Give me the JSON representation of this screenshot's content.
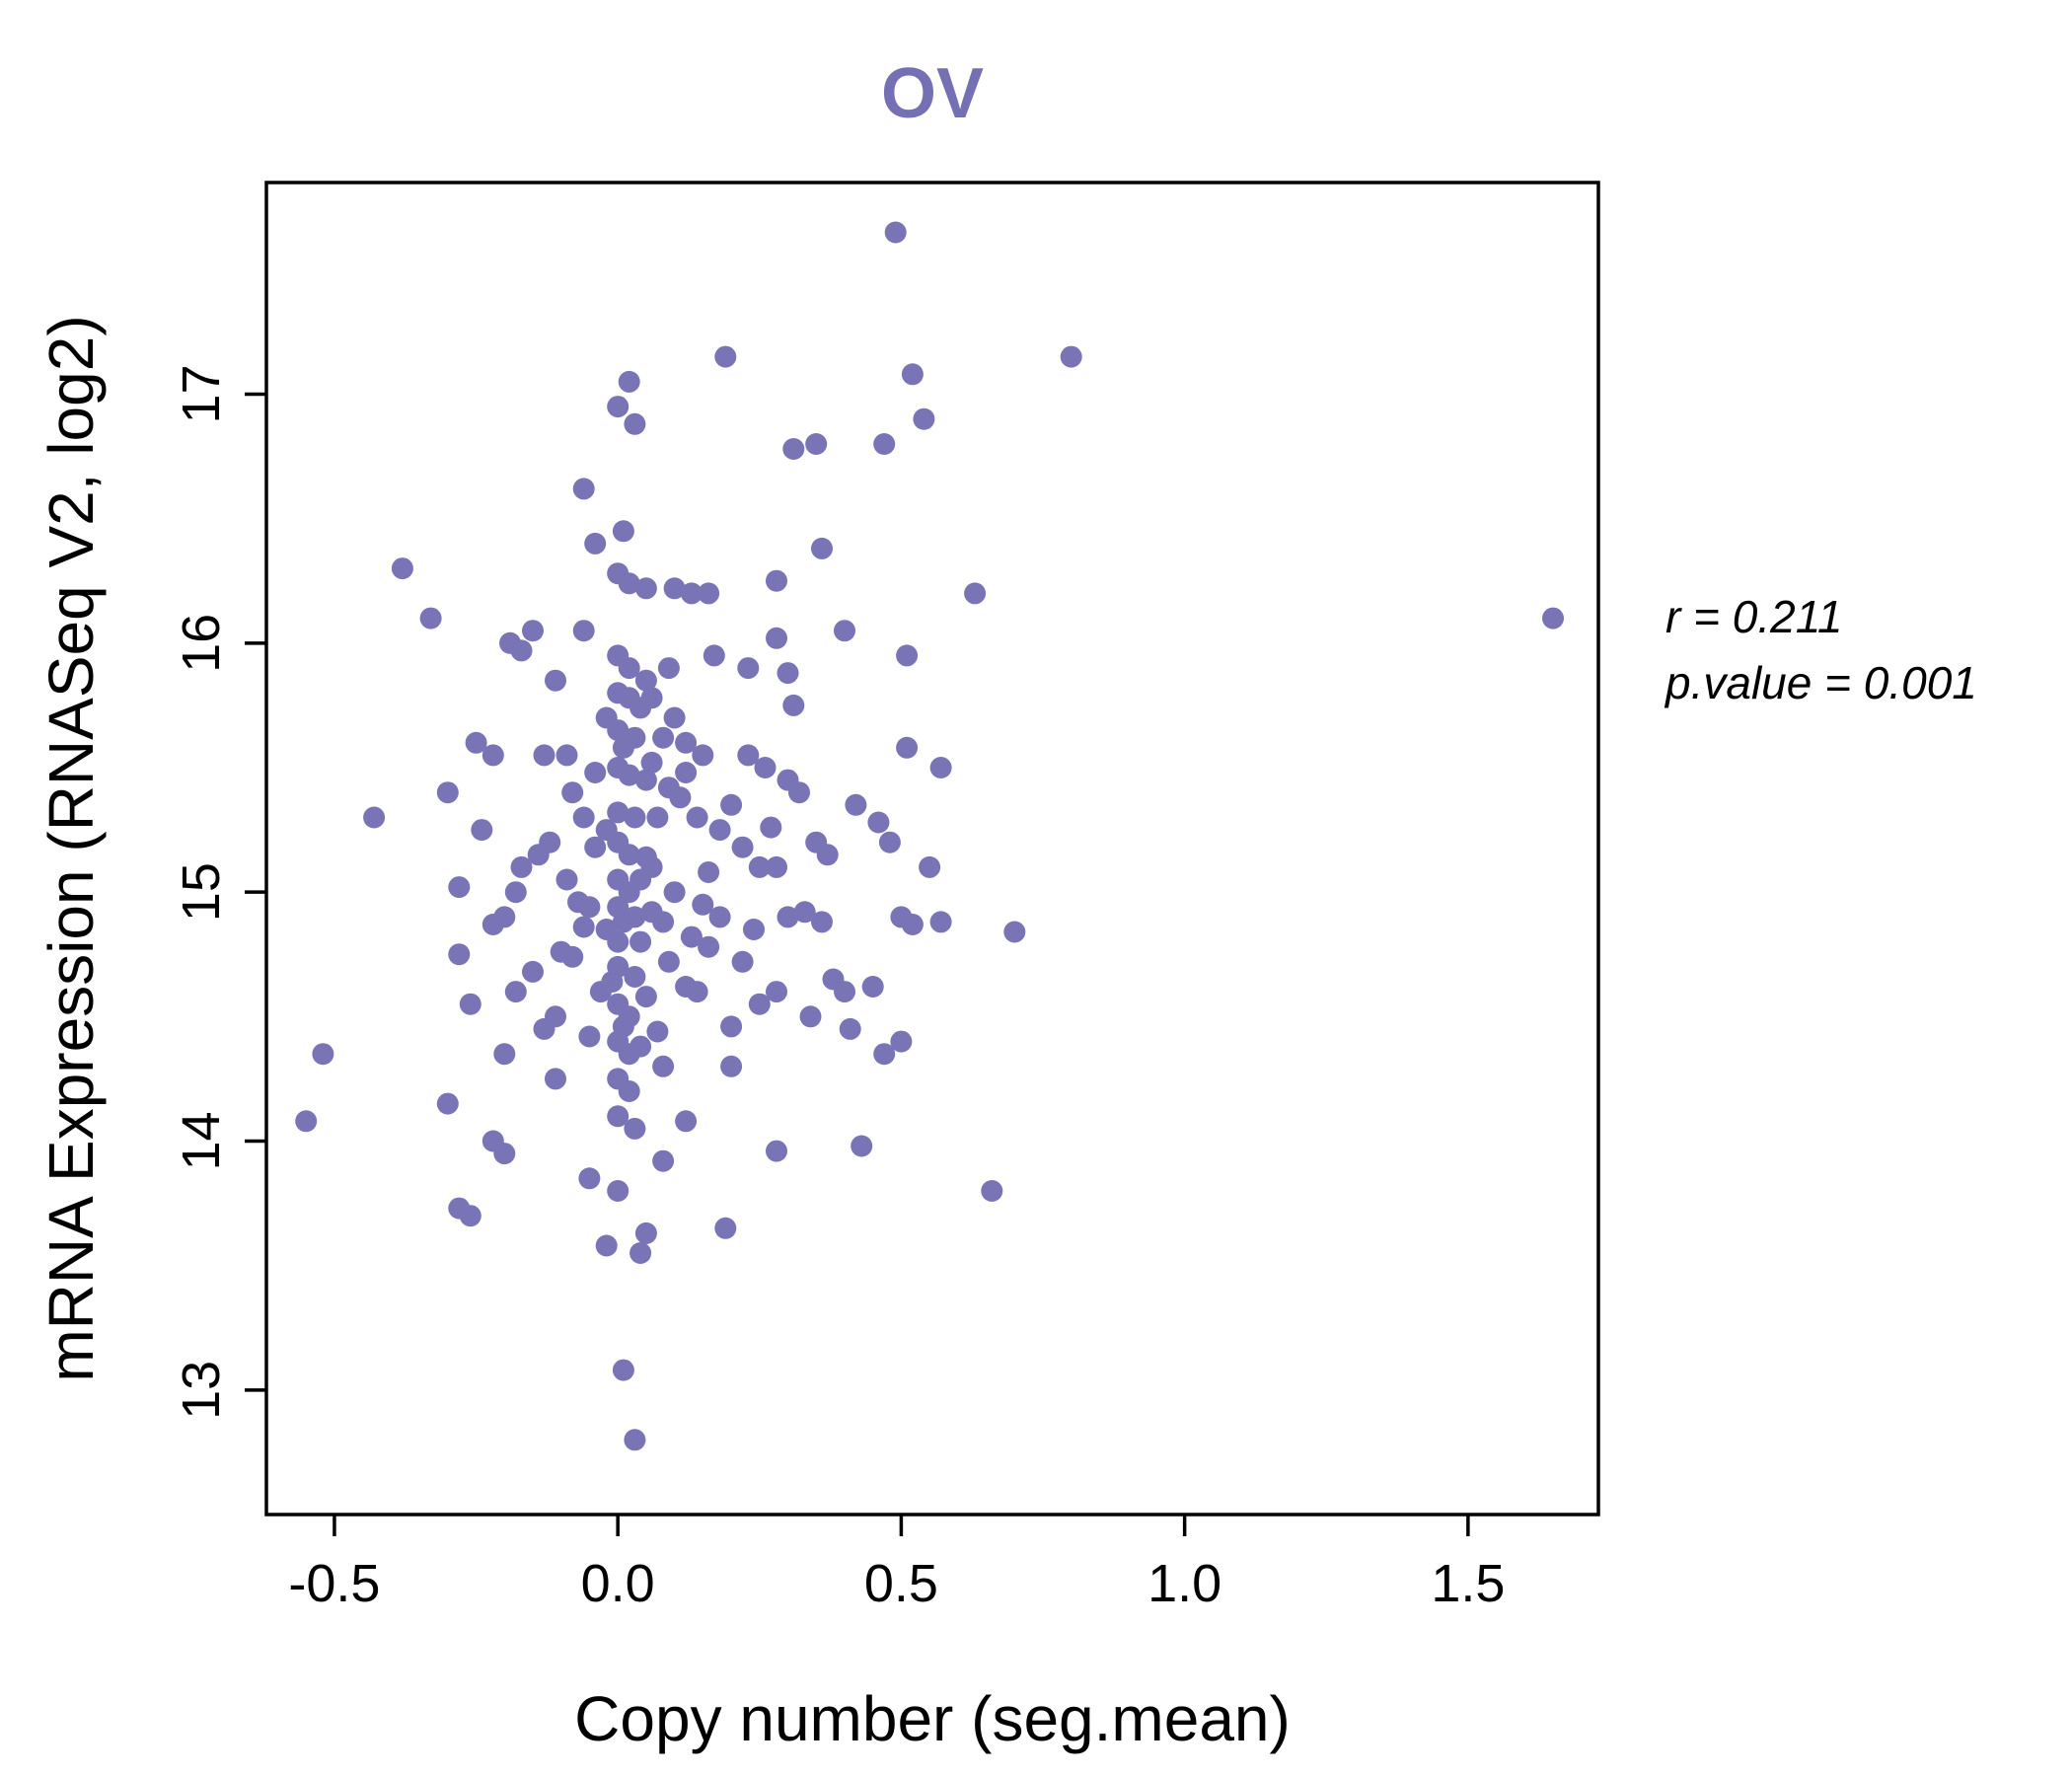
{
  "title": "OV",
  "title_color": "#7570b3",
  "point_color": "#7874b6",
  "axis_color": "#000000",
  "annotation": {
    "line1": "r = 0.211",
    "line2": "p.value = 0.001"
  },
  "chart_data": {
    "type": "scatter",
    "title": "OV",
    "xlabel": "Copy number (seg.mean)",
    "ylabel": "mRNA Expression (RNASeq V2, log2)",
    "xlim": [
      -0.62,
      1.73
    ],
    "ylim": [
      12.5,
      17.85
    ],
    "x_ticks": [
      -0.5,
      0.0,
      0.5,
      1.0,
      1.5
    ],
    "x_tick_labels": [
      "-0.5",
      "0.0",
      "0.5",
      "1.0",
      "1.5"
    ],
    "y_ticks": [
      13,
      14,
      15,
      16,
      17
    ],
    "y_tick_labels": [
      "13",
      "14",
      "15",
      "16",
      "17"
    ],
    "grid": false,
    "legend": "none",
    "r": 0.211,
    "p_value": 0.001,
    "points": [
      [
        0.49,
        17.65
      ],
      [
        0.19,
        17.15
      ],
      [
        0.8,
        17.15
      ],
      [
        0.52,
        17.08
      ],
      [
        0.02,
        17.05
      ],
      [
        0.0,
        16.95
      ],
      [
        0.03,
        16.88
      ],
      [
        0.54,
        16.9
      ],
      [
        0.31,
        16.78
      ],
      [
        0.35,
        16.8
      ],
      [
        0.47,
        16.8
      ],
      [
        -0.06,
        16.62
      ],
      [
        0.01,
        16.45
      ],
      [
        -0.04,
        16.4
      ],
      [
        0.36,
        16.38
      ],
      [
        -0.38,
        16.3
      ],
      [
        0.0,
        16.28
      ],
      [
        0.02,
        16.24
      ],
      [
        0.28,
        16.25
      ],
      [
        0.05,
        16.22
      ],
      [
        0.1,
        16.22
      ],
      [
        0.13,
        16.2
      ],
      [
        0.16,
        16.2
      ],
      [
        0.63,
        16.2
      ],
      [
        -0.33,
        16.1
      ],
      [
        1.65,
        16.1
      ],
      [
        -0.19,
        16.0
      ],
      [
        -0.15,
        16.05
      ],
      [
        0.4,
        16.05
      ],
      [
        -0.06,
        16.05
      ],
      [
        0.28,
        16.02
      ],
      [
        -0.17,
        15.97
      ],
      [
        0.51,
        15.95
      ],
      [
        0.0,
        15.95
      ],
      [
        0.17,
        15.95
      ],
      [
        0.23,
        15.9
      ],
      [
        0.02,
        15.9
      ],
      [
        0.3,
        15.88
      ],
      [
        -0.11,
        15.85
      ],
      [
        0.05,
        15.85
      ],
      [
        0.0,
        15.8
      ],
      [
        0.02,
        15.78
      ],
      [
        0.31,
        15.75
      ],
      [
        0.04,
        15.74
      ],
      [
        0.1,
        15.7
      ],
      [
        0.0,
        15.65
      ],
      [
        0.03,
        15.62
      ],
      [
        -0.25,
        15.6
      ],
      [
        0.12,
        15.6
      ],
      [
        0.51,
        15.58
      ],
      [
        -0.22,
        15.55
      ],
      [
        -0.13,
        15.55
      ],
      [
        0.15,
        15.55
      ],
      [
        0.57,
        15.5
      ],
      [
        0.0,
        15.5
      ],
      [
        0.02,
        15.47
      ],
      [
        0.05,
        15.45
      ],
      [
        0.3,
        15.45
      ],
      [
        -0.3,
        15.4
      ],
      [
        0.32,
        15.4
      ],
      [
        -0.08,
        15.4
      ],
      [
        0.11,
        15.38
      ],
      [
        0.42,
        15.35
      ],
      [
        0.2,
        15.35
      ],
      [
        0.0,
        15.32
      ],
      [
        -0.43,
        15.3
      ],
      [
        0.03,
        15.3
      ],
      [
        0.27,
        15.26
      ],
      [
        -0.24,
        15.25
      ],
      [
        0.46,
        15.28
      ],
      [
        -0.12,
        15.2
      ],
      [
        0.0,
        15.2
      ],
      [
        0.35,
        15.2
      ],
      [
        0.48,
        15.2
      ],
      [
        -0.14,
        15.15
      ],
      [
        0.02,
        15.15
      ],
      [
        0.05,
        15.14
      ],
      [
        0.37,
        15.15
      ],
      [
        0.25,
        15.1
      ],
      [
        0.28,
        15.1
      ],
      [
        -0.17,
        15.1
      ],
      [
        0.55,
        15.1
      ],
      [
        0.0,
        15.05
      ],
      [
        0.04,
        15.05
      ],
      [
        0.02,
        15.0
      ],
      [
        -0.18,
        15.0
      ],
      [
        0.1,
        15.0
      ],
      [
        -0.28,
        15.02
      ],
      [
        -0.07,
        14.96
      ],
      [
        -0.05,
        14.94
      ],
      [
        0.0,
        14.94
      ],
      [
        0.15,
        14.95
      ],
      [
        0.3,
        14.9
      ],
      [
        0.5,
        14.9
      ],
      [
        -0.2,
        14.9
      ],
      [
        0.03,
        14.9
      ],
      [
        0.52,
        14.87
      ],
      [
        -0.22,
        14.87
      ],
      [
        0.08,
        14.88
      ],
      [
        -0.02,
        14.85
      ],
      [
        0.13,
        14.82
      ],
      [
        0.0,
        14.8
      ],
      [
        0.04,
        14.8
      ],
      [
        0.16,
        14.78
      ],
      [
        0.7,
        14.84
      ],
      [
        -0.1,
        14.76
      ],
      [
        -0.08,
        14.74
      ],
      [
        -0.28,
        14.75
      ],
      [
        0.22,
        14.72
      ],
      [
        0.0,
        14.7
      ],
      [
        0.03,
        14.66
      ],
      [
        0.38,
        14.65
      ],
      [
        0.12,
        14.62
      ],
      [
        0.14,
        14.6
      ],
      [
        0.4,
        14.6
      ],
      [
        -0.03,
        14.6
      ],
      [
        0.28,
        14.6
      ],
      [
        0.0,
        14.55
      ],
      [
        -0.26,
        14.55
      ],
      [
        0.25,
        14.55
      ],
      [
        0.02,
        14.5
      ],
      [
        -0.11,
        14.5
      ],
      [
        0.34,
        14.5
      ],
      [
        0.2,
        14.46
      ],
      [
        -0.13,
        14.45
      ],
      [
        0.41,
        14.45
      ],
      [
        0.0,
        14.4
      ],
      [
        0.04,
        14.38
      ],
      [
        0.02,
        14.35
      ],
      [
        -0.2,
        14.35
      ],
      [
        -0.52,
        14.35
      ],
      [
        0.47,
        14.35
      ],
      [
        0.08,
        14.3
      ],
      [
        0.2,
        14.3
      ],
      [
        -0.11,
        14.25
      ],
      [
        0.0,
        14.25
      ],
      [
        0.02,
        14.2
      ],
      [
        -0.3,
        14.15
      ],
      [
        0.0,
        14.1
      ],
      [
        -0.55,
        14.08
      ],
      [
        0.12,
        14.08
      ],
      [
        0.03,
        14.05
      ],
      [
        -0.22,
        14.0
      ],
      [
        0.43,
        13.98
      ],
      [
        -0.2,
        13.95
      ],
      [
        0.28,
        13.96
      ],
      [
        0.08,
        13.92
      ],
      [
        -0.05,
        13.85
      ],
      [
        0.0,
        13.8
      ],
      [
        0.66,
        13.8
      ],
      [
        -0.28,
        13.73
      ],
      [
        -0.26,
        13.7
      ],
      [
        0.19,
        13.65
      ],
      [
        0.05,
        13.63
      ],
      [
        -0.02,
        13.58
      ],
      [
        0.04,
        13.55
      ],
      [
        0.01,
        13.08
      ],
      [
        0.03,
        12.8
      ],
      [
        0.01,
        15.58
      ],
      [
        0.06,
        15.52
      ],
      [
        -0.04,
        15.48
      ],
      [
        0.07,
        15.3
      ],
      [
        -0.02,
        15.25
      ],
      [
        0.06,
        15.1
      ],
      [
        -0.04,
        15.18
      ],
      [
        0.01,
        14.88
      ],
      [
        0.06,
        14.92
      ],
      [
        -0.06,
        14.86
      ],
      [
        0.09,
        14.72
      ],
      [
        -0.01,
        14.64
      ],
      [
        0.05,
        14.58
      ],
      [
        0.07,
        14.44
      ],
      [
        -0.05,
        14.42
      ],
      [
        0.01,
        14.46
      ],
      [
        0.09,
        15.42
      ],
      [
        -0.09,
        15.55
      ],
      [
        0.18,
        15.25
      ],
      [
        0.22,
        15.18
      ],
      [
        0.18,
        14.9
      ],
      [
        0.24,
        14.85
      ],
      [
        -0.15,
        14.68
      ],
      [
        -0.18,
        14.6
      ],
      [
        0.33,
        14.92
      ],
      [
        0.36,
        14.88
      ],
      [
        0.45,
        14.62
      ],
      [
        0.5,
        14.4
      ],
      [
        0.57,
        14.88
      ],
      [
        0.23,
        15.55
      ],
      [
        0.26,
        15.5
      ],
      [
        0.08,
        15.62
      ],
      [
        0.12,
        15.48
      ],
      [
        0.14,
        15.3
      ],
      [
        0.16,
        15.08
      ],
      [
        -0.09,
        15.05
      ],
      [
        -0.06,
        15.3
      ],
      [
        -0.02,
        15.7
      ],
      [
        0.06,
        15.78
      ],
      [
        0.09,
        15.9
      ]
    ]
  }
}
